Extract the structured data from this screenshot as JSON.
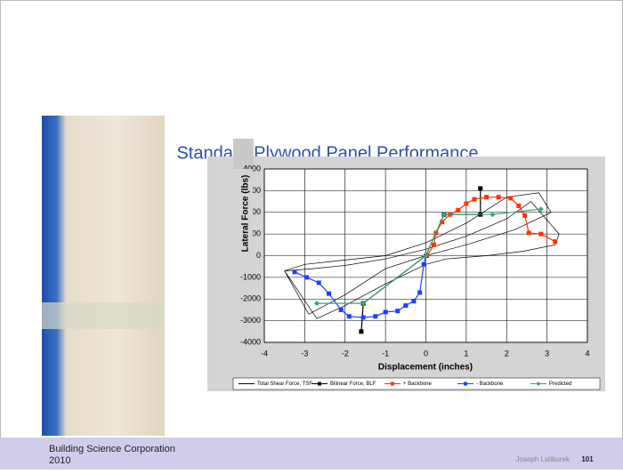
{
  "slide": {
    "title": "Standard Plywood Panel Performance"
  },
  "chart_data": {
    "type": "line",
    "ylabel": "Lateral Force (lbs)",
    "xlabel": "Displacement (inches)",
    "xlim": [
      -4,
      4
    ],
    "xticks": [
      -4,
      -3,
      -2,
      -1,
      0,
      1,
      2,
      3,
      4
    ],
    "ylim": [
      -4000,
      4000
    ],
    "yticks": [
      -4000,
      -3000,
      -2000,
      -1000,
      0,
      1000,
      2000,
      3000,
      4000
    ],
    "grid": true,
    "legend": "bottom",
    "series": [
      {
        "name": "Total Shear Force, TSF",
        "color": "#000000",
        "marker": "none",
        "x": [
          -3.5,
          -2.8,
          -2,
          -1,
          0,
          1,
          2,
          2.6,
          3.3,
          3.2,
          2.4,
          1.5,
          0.5,
          0,
          -1,
          -2,
          -2.7,
          -3.5,
          -3,
          -2,
          -1,
          0,
          1,
          2,
          2.8,
          3.1,
          2.2,
          1,
          0,
          -1,
          -2,
          -2.9,
          -3.5
        ],
        "values": [
          -700,
          -600,
          -450,
          -150,
          300,
          900,
          1700,
          2500,
          1000,
          500,
          200,
          0,
          -150,
          -400,
          -1300,
          -2300,
          -2900,
          -700,
          -400,
          -200,
          0,
          600,
          1500,
          2700,
          2900,
          2000,
          1200,
          500,
          0,
          -600,
          -1800,
          -2700,
          -700
        ]
      },
      {
        "name": "Bilinear Force, BLF",
        "color": "#000000",
        "marker": "square",
        "x": [
          -1.6,
          -1.55,
          0,
          0.45,
          1.35,
          1.35
        ],
        "values": [
          -3500,
          -2200,
          0,
          1900,
          1900,
          3100
        ]
      },
      {
        "name": "+ Backbone",
        "color": "#ff3300",
        "marker": "square",
        "x": [
          0.03,
          0.2,
          0.25,
          0.4,
          0.6,
          0.8,
          1.0,
          1.2,
          1.5,
          1.8,
          2.1,
          2.3,
          2.45,
          2.55,
          2.85,
          3.2
        ],
        "values": [
          0,
          500,
          1050,
          1550,
          1900,
          2100,
          2400,
          2600,
          2700,
          2700,
          2650,
          2300,
          1850,
          1050,
          1000,
          650
        ]
      },
      {
        "name": "- Backbone",
        "color": "#1f3fff",
        "marker": "square",
        "x": [
          0,
          -0.05,
          -0.15,
          -0.3,
          -0.5,
          -0.7,
          -1.0,
          -1.25,
          -1.55,
          -1.9,
          -2.1,
          -2.4,
          -2.65,
          -2.95,
          -3.25
        ],
        "values": [
          0,
          -400,
          -1700,
          -2100,
          -2300,
          -2550,
          -2600,
          -2800,
          -2850,
          -2800,
          -2500,
          -1750,
          -1250,
          -1000,
          -750
        ]
      },
      {
        "name": "Predicted",
        "color": "#3aa67a",
        "marker": "diamond",
        "x": [
          -2.7,
          -1.55,
          0,
          0.45,
          1.65,
          2.85
        ],
        "values": [
          -2200,
          -2200,
          0,
          1900,
          1900,
          2150
        ]
      }
    ]
  },
  "footer": {
    "org": "Building Science Corporation",
    "year": "2010",
    "author": "Joseph Lstiburek",
    "page": "101"
  }
}
